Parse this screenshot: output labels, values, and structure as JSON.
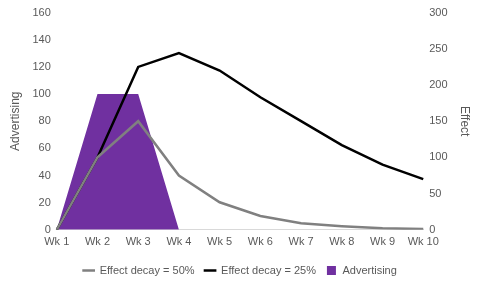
{
  "chart_data": {
    "type": "line",
    "categories": [
      "Wk 1",
      "Wk 2",
      "Wk 3",
      "Wk 4",
      "Wk 5",
      "Wk 6",
      "Wk 7",
      "Wk 8",
      "Wk 9",
      "Wk 10"
    ],
    "y_label": "Advertising",
    "y2_label": "Effect",
    "ylim": [
      0,
      160
    ],
    "yticks": [
      0,
      20,
      40,
      60,
      80,
      100,
      120,
      140,
      160
    ],
    "y2lim": [
      0,
      300
    ],
    "y2ticks": [
      0,
      50,
      100,
      150,
      200,
      250,
      300
    ],
    "grid": false,
    "legend": "bottom",
    "series": [
      {
        "name": "Advertising",
        "type": "area",
        "color": "#7030a0",
        "values": [
          0,
          100,
          100,
          0,
          0,
          0,
          0,
          0,
          0,
          0
        ]
      },
      {
        "name": "Effect decay = 50%",
        "type": "line",
        "color": "#808080",
        "axis": "y2",
        "values": [
          0,
          100,
          150,
          75,
          38,
          19,
          9,
          5,
          2,
          1
        ]
      },
      {
        "name": "Effect decay = 25%",
        "type": "line",
        "color": "#000000",
        "axis": "y2",
        "values": [
          0,
          100,
          225,
          244,
          220,
          183,
          150,
          117,
          90,
          70
        ]
      }
    ]
  }
}
